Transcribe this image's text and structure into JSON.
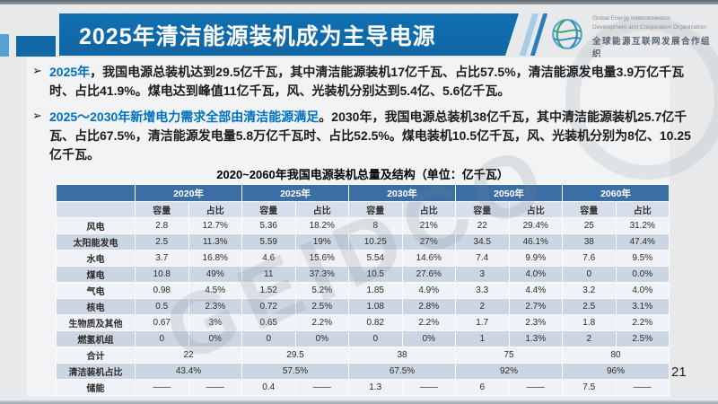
{
  "slide": {
    "page_number": "21",
    "watermark": "GEIDCO"
  },
  "header": {
    "title": "2025年清洁能源装机成为主导电源"
  },
  "logo": {
    "en_line1": "Global Energy Interconnection",
    "en_line2": "Development and Cooperation Organization",
    "zh": "全球能源互联网发展合作组织",
    "icon": "globe-icon"
  },
  "bullets": [
    {
      "marker": "➢",
      "highlight": "2025年",
      "text": "，我国电源总装机达到29.5亿千瓦，其中清洁能源装机17亿千瓦、占比57.5%，清洁能源发电量3.9万亿千瓦时、占比41.9%。煤电达到峰值11亿千瓦，风、光装机分别达到5.4亿、5.6亿千瓦。"
    },
    {
      "marker": "➢",
      "highlight": "2025～2030年新增电力需求全部由清洁能源满足",
      "text": "。2030年，我国电源总装机38亿千瓦，其中清洁能源装机25.7亿千瓦、占比67.5%，清洁能源发电量5.8万亿千瓦时、占比52.5%。煤电装机10.5亿千瓦，风、光装机分别为8亿、10.25亿千瓦。"
    }
  ],
  "table": {
    "title": "2020~2060年我国电源装机总量及结构（单位：亿千瓦）",
    "years": [
      "2020年",
      "2025年",
      "2030年",
      "2050年",
      "2060年"
    ],
    "subheaders": [
      "容量",
      "占比"
    ],
    "rows": [
      {
        "label": "风电",
        "cells": [
          "2.8",
          "12.7%",
          "5.36",
          "18.2%",
          "8",
          "21%",
          "22",
          "29.4%",
          "25",
          "31.2%"
        ]
      },
      {
        "label": "太阳能发电",
        "cells": [
          "2.5",
          "11.3%",
          "5.59",
          "19%",
          "10.25",
          "27%",
          "34.5",
          "46.1%",
          "38",
          "47.4%"
        ]
      },
      {
        "label": "水电",
        "cells": [
          "3.7",
          "16.8%",
          "4.6",
          "15.6%",
          "5.54",
          "14.6%",
          "7.4",
          "9.9%",
          "7.6",
          "9.5%"
        ]
      },
      {
        "label": "煤电",
        "cells": [
          "10.8",
          "49%",
          "11",
          "37.3%",
          "10.5",
          "27.6%",
          "3",
          "4.0%",
          "0",
          "0.0%"
        ]
      },
      {
        "label": "气电",
        "cells": [
          "0.98",
          "4.5%",
          "1.52",
          "5.2%",
          "1.85",
          "4.9%",
          "3.3",
          "4.4%",
          "3.2",
          "4.0%"
        ]
      },
      {
        "label": "核电",
        "cells": [
          "0.5",
          "2.3%",
          "0.72",
          "2.5%",
          "1.08",
          "2.8%",
          "2",
          "2.7%",
          "2.5",
          "3.1%"
        ]
      },
      {
        "label": "生物质及其他",
        "cells": [
          "0.67",
          "3%",
          "0.65",
          "2.2%",
          "0.82",
          "2.2%",
          "1.7",
          "2.3%",
          "1.8",
          "2.2%"
        ]
      },
      {
        "label": "燃氢机组",
        "cells": [
          "0",
          "0%",
          "0",
          "0%",
          "0",
          "0%",
          "1",
          "1.3%",
          "2",
          "2.5%"
        ]
      }
    ],
    "summary_rows": [
      {
        "label": "合计",
        "values": [
          "22",
          "29.5",
          "38",
          "75",
          "80"
        ]
      },
      {
        "label": "清洁装机占比",
        "values": [
          "43.4%",
          "57.5%",
          "67.5%",
          "92%",
          "96%"
        ]
      }
    ],
    "storage_row": {
      "label": "储能",
      "pairs": [
        [
          "——",
          "——"
        ],
        [
          "0.4",
          "——"
        ],
        [
          "1.3",
          "——"
        ],
        [
          "6",
          "——"
        ],
        [
          "7.5",
          "——"
        ]
      ]
    }
  }
}
